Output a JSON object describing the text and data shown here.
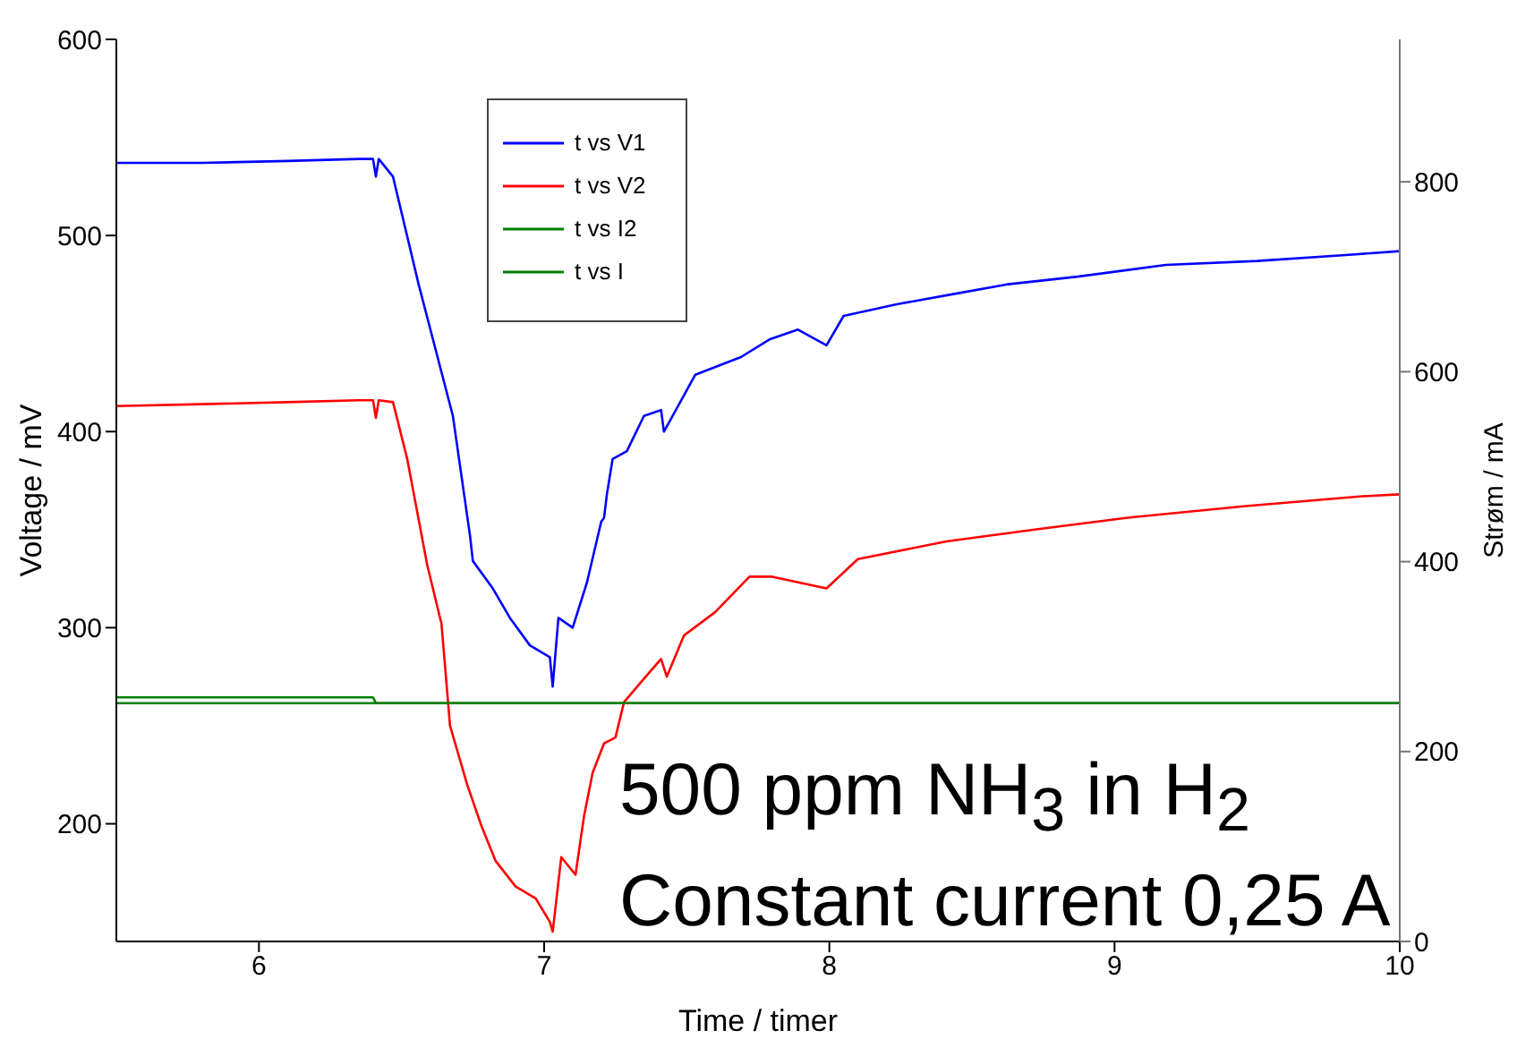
{
  "chart_data": {
    "type": "line",
    "xlabel": "Time / timer",
    "ylabel": "Voltage / mV",
    "y2label": "Strøm / mA",
    "xlim": [
      5.5,
      10
    ],
    "xticks": [
      6,
      7,
      8,
      9,
      10
    ],
    "ylim": [
      140,
      600
    ],
    "yticks": [
      200,
      300,
      400,
      500,
      600
    ],
    "y2lim": [
      0,
      950
    ],
    "y2ticks": [
      0,
      200,
      400,
      600,
      800
    ],
    "legend": "top left",
    "grid": false,
    "marker": "none",
    "line_style": "solid",
    "annotations": [
      "500 ppm NH$_{3}$ in H$_{2}$",
      "Constant current 0,25 A"
    ],
    "series": [
      {
        "name": "t vs V1",
        "color": "#0000ff",
        "x": [
          5.5,
          5.8,
          6.1,
          6.35,
          6.4,
          6.41,
          6.42,
          6.47,
          6.56,
          6.68,
          6.74,
          6.75,
          6.82,
          6.88,
          6.95,
          7.02,
          7.03,
          7.05,
          7.1,
          7.15,
          7.2,
          7.21,
          7.22,
          7.24,
          7.29,
          7.35,
          7.41,
          7.42,
          7.53,
          7.69,
          7.79,
          7.89,
          7.99,
          8.05,
          8.24,
          8.43,
          8.62,
          8.87,
          9.18,
          9.5,
          9.81,
          10
        ],
        "values": [
          537,
          537,
          538,
          539,
          539,
          530,
          539,
          530,
          475,
          408,
          347,
          334,
          320,
          305,
          291,
          285,
          270,
          305,
          300,
          323,
          354,
          356,
          368,
          386,
          390,
          408,
          411,
          400,
          429,
          438,
          447,
          452,
          444,
          459,
          465,
          470,
          475,
          479,
          485,
          487,
          490,
          492
        ]
      },
      {
        "name": "t vs V2",
        "color": "#ff0000",
        "x": [
          5.5,
          5.8,
          6.1,
          6.35,
          6.4,
          6.41,
          6.42,
          6.47,
          6.52,
          6.59,
          6.64,
          6.67,
          6.73,
          6.78,
          6.83,
          6.9,
          6.97,
          7.02,
          7.03,
          7.06,
          7.11,
          7.14,
          7.17,
          7.21,
          7.25,
          7.28,
          7.35,
          7.41,
          7.43,
          7.49,
          7.6,
          7.72,
          7.8,
          7.99,
          8.1,
          8.41,
          8.72,
          9.04,
          9.46,
          9.87,
          10
        ],
        "values": [
          413,
          414,
          415,
          416,
          416,
          407,
          416,
          415,
          386,
          332,
          302,
          250,
          220,
          199,
          181,
          168,
          162,
          150,
          145,
          183,
          174,
          204,
          226,
          241,
          244,
          262,
          274,
          284,
          275,
          296,
          308,
          326,
          326,
          320,
          335,
          344,
          350,
          356,
          362,
          367,
          368
        ]
      },
      {
        "name": "t vs I2",
        "color": "#008000",
        "axis": "y2",
        "x": [
          5.5,
          6.0,
          6.4,
          6.41,
          7.0,
          7.5,
          8.0,
          8.5,
          9.0,
          9.5,
          10
        ],
        "values": [
          257,
          257,
          257,
          251,
          251,
          251,
          251,
          251,
          251,
          251,
          251
        ]
      },
      {
        "name": "t vs I",
        "color": "#008000",
        "axis": "y2",
        "x": [
          5.5,
          6.0,
          6.4,
          6.41,
          7.0,
          7.5,
          8.0,
          8.5,
          9.0,
          9.5,
          10
        ],
        "values": [
          251,
          251,
          251,
          251,
          251,
          251,
          251,
          251,
          251,
          251,
          251
        ]
      }
    ]
  }
}
